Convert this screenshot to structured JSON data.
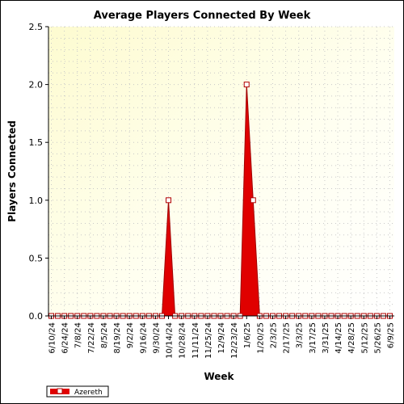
{
  "chart_data": {
    "type": "area",
    "title": "Average Players Connected By Week",
    "xlabel": "Week",
    "ylabel": "Players Connected",
    "ylim": [
      0,
      2.5
    ],
    "yticks": [
      0.0,
      0.5,
      1.0,
      1.5,
      2.0,
      2.5
    ],
    "ytick_labels": [
      "0.0",
      "0.5",
      "1.0",
      "1.5",
      "2.0",
      "2.5"
    ],
    "grid": true,
    "background": "gradient-yellow",
    "legend_placement": "bottom-left",
    "x_tick_labels": [
      "6/10/24",
      "6/24/24",
      "7/8/24",
      "7/22/24",
      "8/5/24",
      "8/19/24",
      "9/2/24",
      "9/16/24",
      "9/30/24",
      "10/14/24",
      "10/28/24",
      "11/11/24",
      "11/25/24",
      "12/9/24",
      "12/23/24",
      "1/6/25",
      "1/20/25",
      "2/3/25",
      "2/17/25",
      "3/3/25",
      "3/17/25",
      "3/31/25",
      "4/14/25",
      "4/28/25",
      "5/12/25",
      "5/26/25",
      "6/9/25"
    ],
    "x": [
      "6/10/24",
      "6/17/24",
      "6/24/24",
      "7/1/24",
      "7/8/24",
      "7/15/24",
      "7/22/24",
      "7/29/24",
      "8/5/24",
      "8/12/24",
      "8/19/24",
      "8/26/24",
      "9/2/24",
      "9/9/24",
      "9/16/24",
      "9/23/24",
      "9/30/24",
      "10/7/24",
      "10/14/24",
      "10/21/24",
      "10/28/24",
      "11/4/24",
      "11/11/24",
      "11/18/24",
      "11/25/24",
      "12/2/24",
      "12/9/24",
      "12/16/24",
      "12/23/24",
      "12/30/24",
      "1/6/25",
      "1/13/25",
      "1/20/25",
      "1/27/25",
      "2/3/25",
      "2/10/25",
      "2/17/25",
      "2/24/25",
      "3/3/25",
      "3/10/25",
      "3/17/25",
      "3/24/25",
      "3/31/25",
      "4/7/25",
      "4/14/25",
      "4/21/25",
      "4/28/25",
      "5/5/25",
      "5/12/25",
      "5/19/25",
      "5/26/25",
      "6/2/25",
      "6/9/25"
    ],
    "series": [
      {
        "name": "Azereth",
        "color": "#e00000",
        "values": [
          0,
          0,
          0,
          0,
          0,
          0,
          0,
          0,
          0,
          0,
          0,
          0,
          0,
          0,
          0,
          0,
          0,
          0,
          1.0,
          0,
          0,
          0,
          0,
          0,
          0,
          0,
          0,
          0,
          0,
          0,
          2.0,
          1.0,
          0,
          0,
          0,
          0,
          0,
          0,
          0,
          0,
          0,
          0,
          0,
          0,
          0,
          0,
          0,
          0,
          0,
          0,
          0,
          0,
          0
        ]
      }
    ]
  }
}
